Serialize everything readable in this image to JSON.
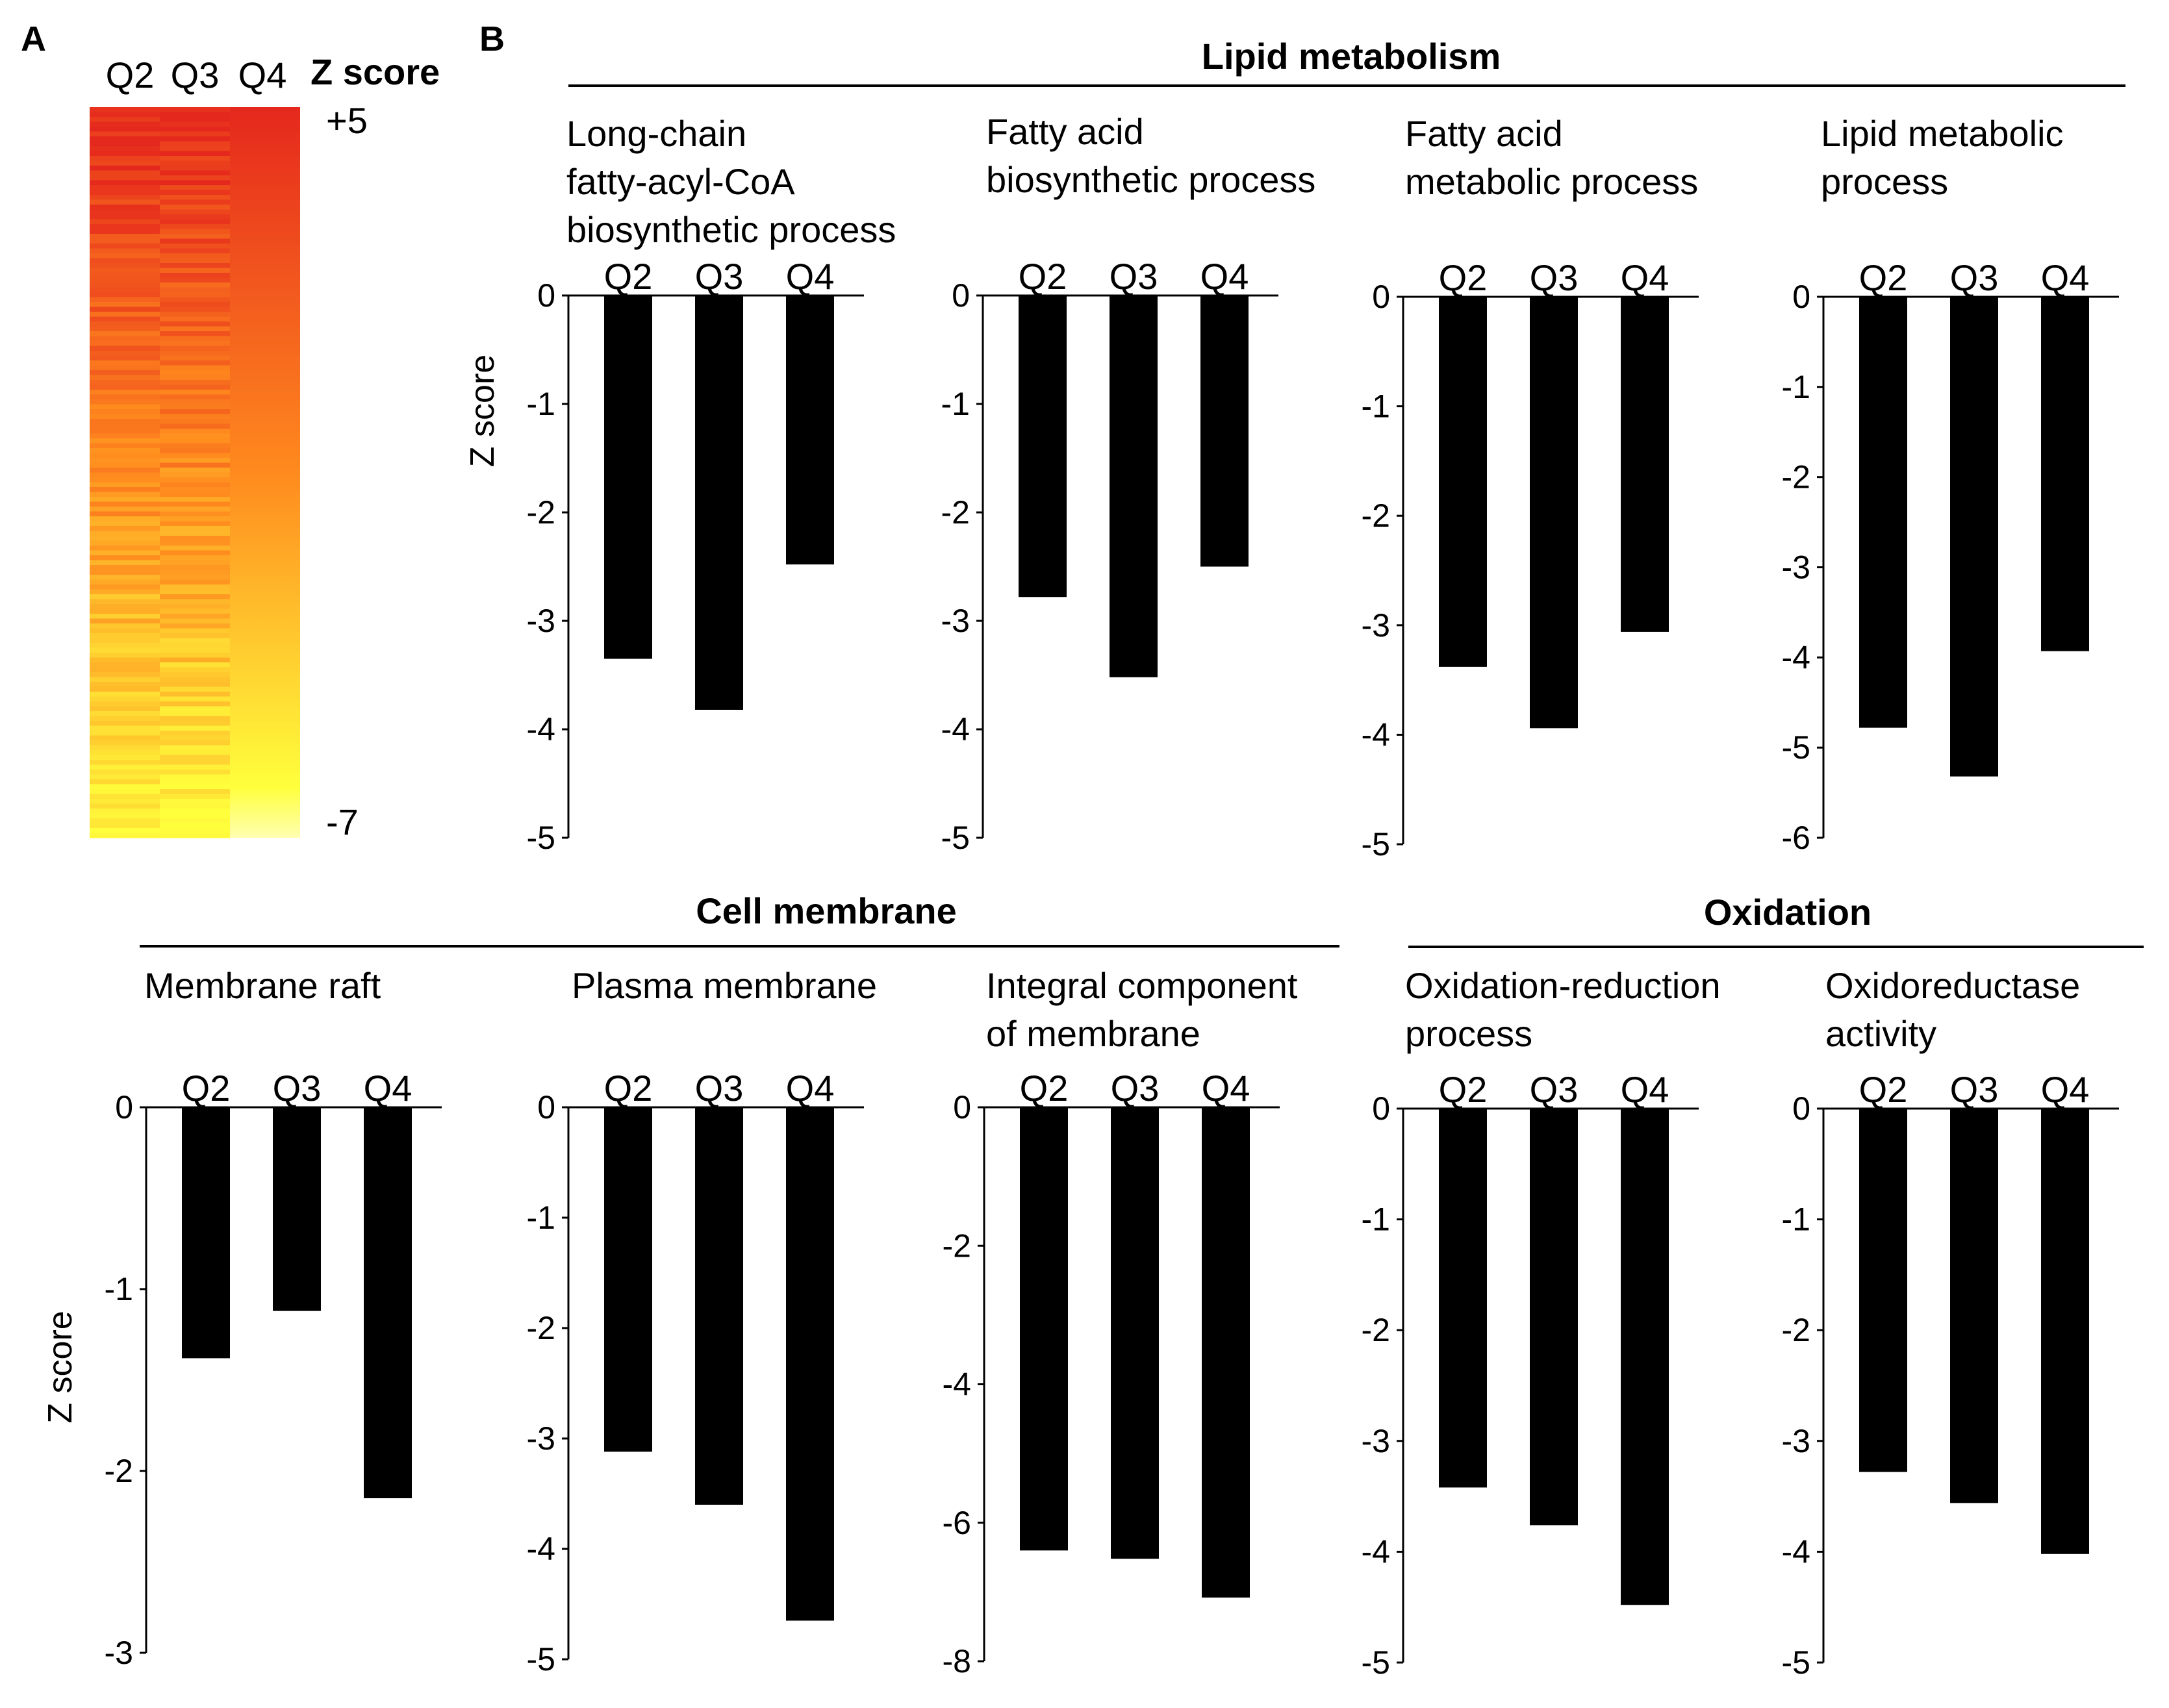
{
  "panel_a_letter": "A",
  "panel_b_letter": "B",
  "heatmap": {
    "columns": [
      "Q2",
      "Q3",
      "Q4"
    ],
    "scale_title": "Z score",
    "scale_max_label": "+5",
    "scale_min_label": "-7",
    "color_top": "#e5281d",
    "color_mid": "#ff8a1e",
    "color_bottom": "#ffff3c",
    "color_lowest": "#ffffb0"
  },
  "sections": [
    {
      "id": "lipid",
      "title": "Lipid metabolism"
    },
    {
      "id": "membrane",
      "title": "Cell membrane"
    },
    {
      "id": "oxidation",
      "title": "Oxidation"
    }
  ],
  "bar_color": "#000000",
  "chart_data": [
    {
      "type": "bar",
      "section": "Lipid metabolism",
      "title_lines": [
        "Long-chain",
        "fatty-acyl-CoA",
        "biosynthetic process"
      ],
      "categories": [
        "Q2",
        "Q3",
        "Q4"
      ],
      "values": [
        -3.35,
        -3.82,
        -2.48
      ],
      "ylabel": "Z score",
      "ylim": [
        -5,
        0
      ],
      "yticks": [
        "0",
        "-1",
        "-2",
        "-3",
        "-4",
        "-5"
      ]
    },
    {
      "type": "bar",
      "section": "Lipid metabolism",
      "title_lines": [
        "Fatty acid",
        "biosynthetic process"
      ],
      "categories": [
        "Q2",
        "Q3",
        "Q4"
      ],
      "values": [
        -2.78,
        -3.52,
        -2.5
      ],
      "ylabel": "",
      "ylim": [
        -5,
        0
      ],
      "yticks": [
        "0",
        "-1",
        "-2",
        "-3",
        "-4",
        "-5"
      ]
    },
    {
      "type": "bar",
      "section": "Lipid metabolism",
      "title_lines": [
        "Fatty acid",
        "metabolic process"
      ],
      "categories": [
        "Q2",
        "Q3",
        "Q4"
      ],
      "values": [
        -3.38,
        -3.94,
        -3.06
      ],
      "ylabel": "",
      "ylim": [
        -5,
        0
      ],
      "yticks": [
        "0",
        "-1",
        "-2",
        "-3",
        "-4",
        "-5"
      ]
    },
    {
      "type": "bar",
      "section": "Lipid metabolism",
      "title_lines": [
        "Lipid metabolic",
        "process"
      ],
      "categories": [
        "Q2",
        "Q3",
        "Q4"
      ],
      "values": [
        -4.78,
        -5.32,
        -3.93
      ],
      "ylabel": "",
      "ylim": [
        -6,
        0
      ],
      "yticks": [
        "0",
        "-1",
        "-2",
        "-3",
        "-4",
        "-5",
        "-6"
      ]
    },
    {
      "type": "bar",
      "section": "Cell membrane",
      "title_lines": [
        "Membrane raft"
      ],
      "categories": [
        "Q2",
        "Q3",
        "Q4"
      ],
      "values": [
        -1.38,
        -1.12,
        -2.15
      ],
      "ylabel": "Z score",
      "ylim": [
        -3,
        0
      ],
      "yticks": [
        "0",
        "-1",
        "-2",
        "-3"
      ]
    },
    {
      "type": "bar",
      "section": "Cell membrane",
      "title_lines": [
        "Plasma membrane"
      ],
      "categories": [
        "Q2",
        "Q3",
        "Q4"
      ],
      "values": [
        -3.12,
        -3.6,
        -4.65
      ],
      "ylabel": "",
      "ylim": [
        -5,
        0
      ],
      "yticks": [
        "0",
        "-1",
        "-2",
        "-3",
        "-4",
        "-5"
      ]
    },
    {
      "type": "bar",
      "section": "Cell membrane",
      "title_lines": [
        "Integral component",
        "of membrane"
      ],
      "categories": [
        "Q2",
        "Q3",
        "Q4"
      ],
      "values": [
        -6.4,
        -6.52,
        -7.08
      ],
      "ylabel": "",
      "ylim": [
        -8,
        0
      ],
      "yticks": [
        "0",
        "-2",
        "-4",
        "-6",
        "-8"
      ]
    },
    {
      "type": "bar",
      "section": "Oxidation",
      "title_lines": [
        "Oxidation-reduction",
        "process"
      ],
      "categories": [
        "Q2",
        "Q3",
        "Q4"
      ],
      "values": [
        -3.42,
        -3.76,
        -4.48
      ],
      "ylabel": "",
      "ylim": [
        -5,
        0
      ],
      "yticks": [
        "0",
        "-1",
        "-2",
        "-3",
        "-4",
        "-5"
      ]
    },
    {
      "type": "bar",
      "section": "Oxidation",
      "title_lines": [
        "Oxidoreductase",
        "activity"
      ],
      "categories": [
        "Q2",
        "Q3",
        "Q4"
      ],
      "values": [
        -3.28,
        -3.56,
        -4.02
      ],
      "ylabel": "",
      "ylim": [
        -5,
        0
      ],
      "yticks": [
        "0",
        "-1",
        "-2",
        "-3",
        "-4",
        "-5"
      ]
    }
  ]
}
